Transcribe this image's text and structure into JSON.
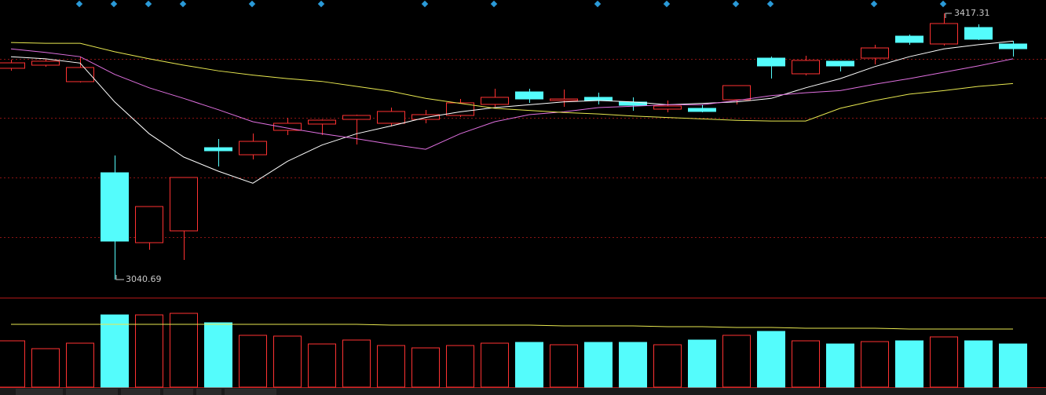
{
  "chart_data": {
    "type": "candlestick",
    "up_color": "#ff3232",
    "down_color": "#54fcfc",
    "grid": true,
    "ylim": [
      3016.25,
      3436.2
    ],
    "open": [
      3339.6,
      3344.0,
      3320.7,
      3191.8,
      3092.9,
      3109.6,
      3227.3,
      3217.3,
      3251.8,
      3260.7,
      3267.3,
      3261.8,
      3267.3,
      3272.9,
      3288.5,
      3306.2,
      3294.0,
      3298.5,
      3291.8,
      3281.8,
      3282.9,
      3295.1,
      3354.0,
      3331.8,
      3349.6,
      3354.0,
      3385.1,
      3374.0,
      3397.3,
      3374.0
    ],
    "high": [
      3351.8,
      3352.9,
      3356.2,
      3216.2,
      3144.0,
      3185.1,
      3239.6,
      3247.3,
      3269.6,
      3267.3,
      3274.0,
      3284.0,
      3280.7,
      3296.2,
      3310.7,
      3310.7,
      3309.6,
      3305.1,
      3298.5,
      3294.0,
      3288.5,
      3315.1,
      3356.2,
      3357.3,
      3349.6,
      3372.9,
      3387.3,
      3417.31,
      3401.8,
      3378.4
    ],
    "low": [
      3336.2,
      3341.8,
      3319.6,
      3040.69,
      3082.9,
      3068.5,
      3200.7,
      3210.7,
      3245.1,
      3245.1,
      3231.8,
      3257.3,
      3261.8,
      3270.7,
      3285.1,
      3290.7,
      3285.1,
      3288.5,
      3279.6,
      3277.3,
      3277.3,
      3288.5,
      3325.1,
      3329.6,
      3335.1,
      3345.1,
      3372.9,
      3371.8,
      3379.6,
      3356.2
    ],
    "close": [
      3347.3,
      3349.6,
      3340.7,
      3095.1,
      3144.0,
      3185.1,
      3222.9,
      3236.2,
      3261.8,
      3266.2,
      3272.9,
      3278.5,
      3274.0,
      3290.7,
      3298.5,
      3296.2,
      3296.2,
      3294.0,
      3287.3,
      3286.2,
      3278.5,
      3315.1,
      3342.9,
      3350.7,
      3342.9,
      3368.4,
      3376.2,
      3402.9,
      3380.7,
      3367.3
    ],
    "moving_averages": [
      {
        "color": "#ffffff",
        "values": [
          3356,
          3353,
          3347,
          3292,
          3247,
          3214,
          3194,
          3177,
          3208,
          3231,
          3247,
          3258,
          3270,
          3278,
          3284,
          3288,
          3292,
          3294,
          3292,
          3288,
          3290,
          3292,
          3297,
          3312,
          3325,
          3342,
          3356,
          3367,
          3373,
          3378
        ]
      },
      {
        "color": "#e070e0",
        "values": [
          3367,
          3362,
          3356,
          3331,
          3312,
          3297,
          3281,
          3264,
          3255,
          3247,
          3240,
          3232,
          3225,
          3247,
          3264,
          3274,
          3278,
          3284,
          3286,
          3288,
          3288,
          3294,
          3301,
          3305,
          3308,
          3317,
          3325,
          3334,
          3343,
          3353
        ]
      },
      {
        "color": "#e8e850",
        "values": [
          3376,
          3375,
          3375,
          3363,
          3353,
          3344,
          3336,
          3330,
          3325,
          3321,
          3314,
          3307,
          3297,
          3290,
          3283,
          3280,
          3277,
          3275,
          3272,
          3270,
          3268,
          3266,
          3265,
          3265,
          3283,
          3294,
          3303,
          3308,
          3314,
          3318
        ]
      }
    ],
    "volume": {
      "ylim": [
        0,
        113
      ],
      "values": [
        59,
        49,
        56,
        92,
        92,
        94,
        82,
        66,
        65,
        55,
        60,
        53,
        50,
        53,
        56,
        57,
        54,
        57,
        57,
        54,
        60,
        66,
        71,
        59,
        55,
        58,
        59,
        64,
        59,
        55
      ],
      "ma": {
        "color": "#e8e850",
        "values": [
          80,
          80,
          80,
          80,
          80,
          80,
          80,
          80,
          80,
          80,
          80,
          79,
          79,
          79,
          79,
          79,
          78,
          78,
          78,
          77,
          77,
          76,
          76,
          75,
          75,
          75,
          74,
          74,
          74,
          74
        ]
      }
    }
  }
}
